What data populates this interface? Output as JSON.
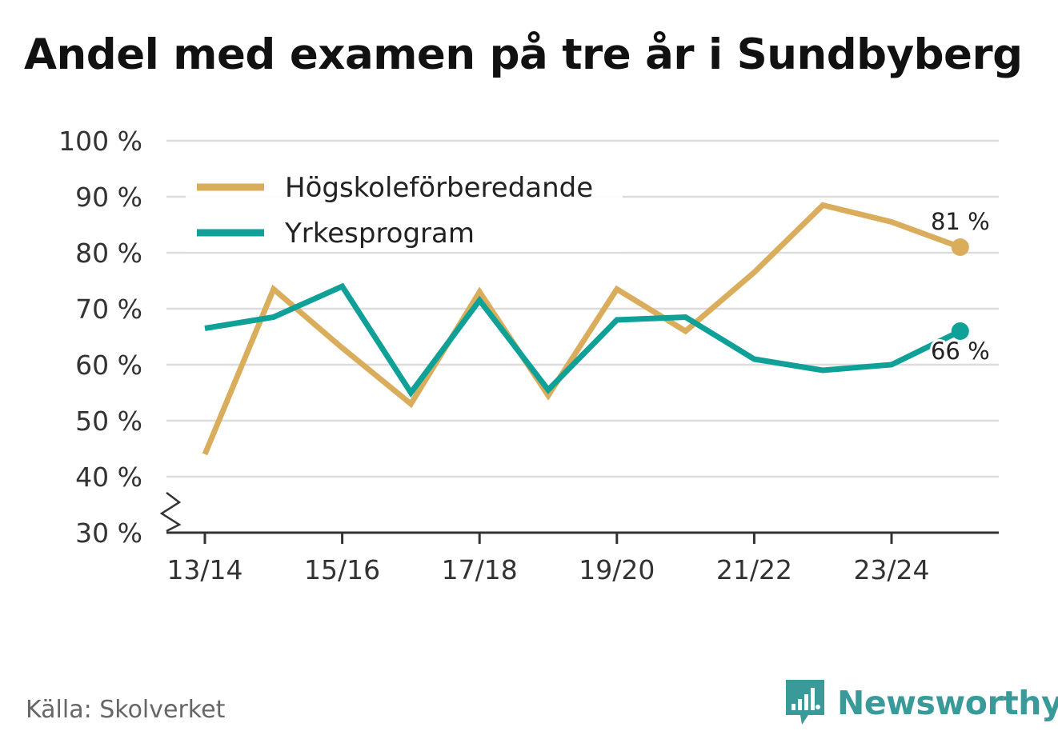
{
  "title": "Andel med examen på tre år i Sundbyberg",
  "source": "Källa: Skolverket",
  "brand": {
    "name": "Newsworthy",
    "icon": "newsworthy-logo-icon",
    "color": "#3a9a9a"
  },
  "chart_data": {
    "type": "line",
    "title": "Andel med examen på tre år i Sundbyberg",
    "xlabel": "",
    "ylabel": "",
    "ylim": [
      30,
      100
    ],
    "y_ticks": [
      30,
      40,
      50,
      60,
      70,
      80,
      90,
      100
    ],
    "y_tick_labels": [
      "30 %",
      "40 %",
      "50 %",
      "60 %",
      "70 %",
      "80 %",
      "90 %",
      "100 %"
    ],
    "y_axis_break": true,
    "categories": [
      "13/14",
      "14/15",
      "15/16",
      "16/17",
      "17/18",
      "18/19",
      "19/20",
      "20/21",
      "21/22",
      "22/23",
      "23/24",
      "24/25"
    ],
    "x_tick_labels": [
      "13/14",
      "",
      "15/16",
      "",
      "17/18",
      "",
      "19/20",
      "",
      "21/22",
      "",
      "23/24",
      ""
    ],
    "grid": true,
    "legend_position": "top-left",
    "series": [
      {
        "name": "Högskoleförberedande",
        "color": "#d9ad5b",
        "values": [
          44,
          73.5,
          63,
          53,
          73,
          54.5,
          73.5,
          66,
          76.5,
          88.5,
          85.5,
          81
        ],
        "end_label": "81 %"
      },
      {
        "name": "Yrkesprogram",
        "color": "#0fa098",
        "values": [
          66.5,
          68.5,
          74,
          55,
          71.5,
          55.5,
          68,
          68.5,
          61,
          59,
          60,
          66
        ],
        "end_label": "66 %"
      }
    ]
  }
}
